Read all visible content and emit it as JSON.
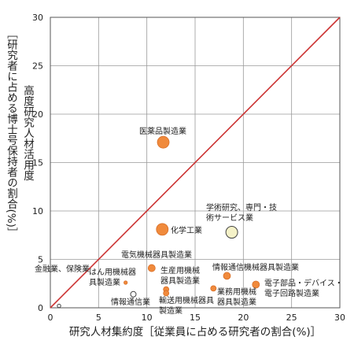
{
  "chart_data": {
    "type": "scatter",
    "xlabel": "研究人材集約度［従業員に占める研究者の割合(%)］",
    "ylabel": "［研究者に占める博士号保持者の割合(%)］",
    "annotation_diagonal": "高度研究人材活用度",
    "xlim": [
      0,
      30
    ],
    "ylim": [
      0,
      30
    ],
    "xticks": [
      "0",
      "5",
      "10",
      "15",
      "20",
      "25",
      "30"
    ],
    "yticks": [
      "0",
      "5",
      "10",
      "15",
      "20",
      "25",
      "30"
    ],
    "grid": true,
    "diagonal_line": {
      "from": [
        0,
        0
      ],
      "to": [
        30,
        30
      ],
      "color": "#cc3333"
    },
    "colors": {
      "bubble": "#f08a3c",
      "bubble_light": "#f5f2c8",
      "bubble_outline": "#444444"
    },
    "points": [
      {
        "label": "医薬品製造業",
        "x": 11.7,
        "y": 17.1,
        "size": "large",
        "fill": "orange"
      },
      {
        "label": "学術研究、専門・技術サービス業",
        "x": 18.8,
        "y": 7.8,
        "size": "large",
        "fill": "light"
      },
      {
        "label": "化学工業",
        "x": 11.6,
        "y": 8.1,
        "size": "large",
        "fill": "orange"
      },
      {
        "label": "電気機械器具製造業",
        "x": 10.5,
        "y": 4.1,
        "size": "medium",
        "fill": "orange"
      },
      {
        "label": "情報通信機械器具製造業",
        "x": 18.3,
        "y": 3.3,
        "size": "medium",
        "fill": "orange"
      },
      {
        "label": "電子部品・デバイス・電子回路製造業",
        "x": 21.3,
        "y": 2.4,
        "size": "medium",
        "fill": "orange"
      },
      {
        "label": "生産用機械器具製造業",
        "x": 12.0,
        "y": 1.9,
        "size": "small",
        "fill": "orange"
      },
      {
        "label": "業務用機械器具製造業",
        "x": 16.9,
        "y": 2.0,
        "size": "small",
        "fill": "orange"
      },
      {
        "label": "輸送用機械器具製造業",
        "x": 12.0,
        "y": 1.5,
        "size": "small",
        "fill": "orange"
      },
      {
        "label": "はん用機械器具製造業",
        "x": 7.8,
        "y": 2.6,
        "size": "tiny",
        "fill": "orange"
      },
      {
        "label": "情報通信業",
        "x": 8.6,
        "y": 1.4,
        "size": "small",
        "fill": "white"
      },
      {
        "label": "金融業、保険業",
        "x": 0.9,
        "y": 0.2,
        "size": "tiny",
        "fill": "white"
      }
    ]
  }
}
